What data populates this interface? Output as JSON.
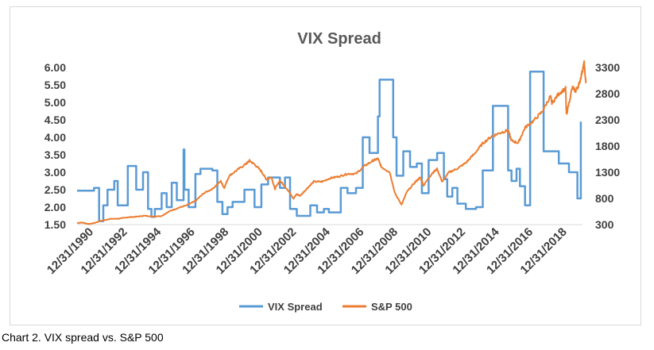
{
  "chart_data": {
    "type": "line",
    "title": "VIX Spread",
    "xlabel": "",
    "ylabel": "",
    "x_tick_labels": [
      "12/31/1990",
      "12/31/1992",
      "12/31/1994",
      "12/31/1996",
      "12/31/1998",
      "12/31/2000",
      "12/31/2002",
      "12/31/2004",
      "12/31/2006",
      "12/31/2008",
      "12/31/2010",
      "12/31/2012",
      "12/31/2014",
      "12/31/2016",
      "12/31/2018"
    ],
    "xlim": [
      1990.0,
      2019.9
    ],
    "y_left": {
      "ticks": [
        "1.50",
        "2.00",
        "2.50",
        "3.00",
        "3.50",
        "4.00",
        "4.50",
        "5.00",
        "5.50",
        "6.00"
      ],
      "ylim": [
        1.5,
        6.0
      ]
    },
    "y_right": {
      "ticks": [
        "300",
        "800",
        "1300",
        "1800",
        "2300",
        "2800",
        "3300"
      ],
      "ylim": [
        300,
        3300
      ]
    },
    "grid": false,
    "legend_position": "bottom",
    "series": [
      {
        "name": "VIX Spread",
        "axis": "left",
        "color": "#5b9bd5",
        "points": [
          [
            1990.0,
            2.47
          ],
          [
            1991.0,
            2.47
          ],
          [
            1991.0,
            2.55
          ],
          [
            1991.3,
            2.55
          ],
          [
            1991.3,
            1.6
          ],
          [
            1991.55,
            1.6
          ],
          [
            1991.55,
            2.05
          ],
          [
            1991.8,
            2.05
          ],
          [
            1991.8,
            2.5
          ],
          [
            1992.2,
            2.5
          ],
          [
            1992.2,
            2.75
          ],
          [
            1992.4,
            2.75
          ],
          [
            1992.4,
            2.05
          ],
          [
            1993.0,
            2.05
          ],
          [
            1993.0,
            3.18
          ],
          [
            1993.5,
            3.18
          ],
          [
            1993.5,
            2.5
          ],
          [
            1993.9,
            2.5
          ],
          [
            1993.9,
            3.0
          ],
          [
            1994.2,
            3.0
          ],
          [
            1994.2,
            1.95
          ],
          [
            1994.4,
            1.95
          ],
          [
            1994.4,
            1.72
          ],
          [
            1994.6,
            1.72
          ],
          [
            1994.6,
            1.95
          ],
          [
            1995.0,
            1.95
          ],
          [
            1995.0,
            2.4
          ],
          [
            1995.3,
            2.4
          ],
          [
            1995.3,
            2.0
          ],
          [
            1995.6,
            2.0
          ],
          [
            1995.6,
            2.7
          ],
          [
            1995.9,
            2.7
          ],
          [
            1995.9,
            2.2
          ],
          [
            1996.3,
            2.2
          ],
          [
            1996.3,
            3.65
          ],
          [
            1996.35,
            3.65
          ],
          [
            1996.35,
            2.5
          ],
          [
            1996.6,
            2.5
          ],
          [
            1996.6,
            2.0
          ],
          [
            1997.0,
            2.0
          ],
          [
            1997.0,
            2.95
          ],
          [
            1997.3,
            2.95
          ],
          [
            1997.3,
            3.1
          ],
          [
            1998.0,
            3.1
          ],
          [
            1998.0,
            3.05
          ],
          [
            1998.3,
            3.05
          ],
          [
            1998.3,
            2.15
          ],
          [
            1998.6,
            2.15
          ],
          [
            1998.6,
            1.8
          ],
          [
            1998.9,
            1.8
          ],
          [
            1998.9,
            2.0
          ],
          [
            1999.2,
            2.0
          ],
          [
            1999.2,
            2.15
          ],
          [
            1999.9,
            2.15
          ],
          [
            1999.9,
            2.5
          ],
          [
            2000.5,
            2.5
          ],
          [
            2000.5,
            2.0
          ],
          [
            2000.9,
            2.0
          ],
          [
            2000.9,
            2.65
          ],
          [
            2001.3,
            2.65
          ],
          [
            2001.3,
            2.85
          ],
          [
            2002.0,
            2.85
          ],
          [
            2002.0,
            2.55
          ],
          [
            2002.3,
            2.55
          ],
          [
            2002.3,
            2.85
          ],
          [
            2002.6,
            2.85
          ],
          [
            2002.6,
            1.95
          ],
          [
            2003.0,
            1.95
          ],
          [
            2003.0,
            1.75
          ],
          [
            2003.8,
            1.75
          ],
          [
            2003.8,
            2.05
          ],
          [
            2004.2,
            2.05
          ],
          [
            2004.2,
            1.85
          ],
          [
            2004.6,
            1.85
          ],
          [
            2004.6,
            1.95
          ],
          [
            2004.9,
            1.95
          ],
          [
            2004.9,
            1.85
          ],
          [
            2005.6,
            1.85
          ],
          [
            2005.6,
            2.55
          ],
          [
            2006.0,
            2.55
          ],
          [
            2006.0,
            2.4
          ],
          [
            2006.5,
            2.4
          ],
          [
            2006.5,
            2.55
          ],
          [
            2006.9,
            2.55
          ],
          [
            2006.9,
            4.0
          ],
          [
            2007.3,
            4.0
          ],
          [
            2007.3,
            3.55
          ],
          [
            2007.8,
            3.55
          ],
          [
            2007.8,
            4.6
          ],
          [
            2007.9,
            4.6
          ],
          [
            2007.9,
            5.65
          ],
          [
            2008.7,
            5.65
          ],
          [
            2008.7,
            4.0
          ],
          [
            2008.9,
            4.0
          ],
          [
            2008.9,
            2.9
          ],
          [
            2009.3,
            2.9
          ],
          [
            2009.3,
            3.6
          ],
          [
            2009.7,
            3.6
          ],
          [
            2009.7,
            3.15
          ],
          [
            2010.1,
            3.15
          ],
          [
            2010.1,
            3.25
          ],
          [
            2010.4,
            3.25
          ],
          [
            2010.4,
            2.4
          ],
          [
            2010.8,
            2.4
          ],
          [
            2010.8,
            3.35
          ],
          [
            2011.3,
            3.35
          ],
          [
            2011.3,
            3.55
          ],
          [
            2011.7,
            3.55
          ],
          [
            2011.7,
            2.8
          ],
          [
            2011.9,
            2.8
          ],
          [
            2011.9,
            2.3
          ],
          [
            2012.2,
            2.3
          ],
          [
            2012.2,
            2.55
          ],
          [
            2012.5,
            2.55
          ],
          [
            2012.5,
            2.1
          ],
          [
            2013.0,
            2.1
          ],
          [
            2013.0,
            1.95
          ],
          [
            2013.6,
            1.95
          ],
          [
            2013.6,
            2.0
          ],
          [
            2014.0,
            2.0
          ],
          [
            2014.0,
            3.05
          ],
          [
            2014.6,
            3.05
          ],
          [
            2014.6,
            4.9
          ],
          [
            2015.5,
            4.9
          ],
          [
            2015.5,
            3.05
          ],
          [
            2015.7,
            3.05
          ],
          [
            2015.7,
            2.75
          ],
          [
            2016.0,
            2.75
          ],
          [
            2016.0,
            3.1
          ],
          [
            2016.2,
            3.1
          ],
          [
            2016.2,
            2.6
          ],
          [
            2016.5,
            2.6
          ],
          [
            2016.5,
            2.05
          ],
          [
            2016.8,
            2.05
          ],
          [
            2016.8,
            5.88
          ],
          [
            2017.6,
            5.88
          ],
          [
            2017.6,
            3.6
          ],
          [
            2018.5,
            3.6
          ],
          [
            2018.5,
            3.25
          ],
          [
            2019.1,
            3.25
          ],
          [
            2019.1,
            3.0
          ],
          [
            2019.6,
            3.0
          ],
          [
            2019.6,
            2.25
          ],
          [
            2019.8,
            2.25
          ],
          [
            2019.8,
            4.45
          ]
        ]
      },
      {
        "name": "S&P 500",
        "axis": "right",
        "color": "#ed7d31",
        "points": [
          [
            1990.0,
            330
          ],
          [
            1990.3,
            340
          ],
          [
            1990.7,
            310
          ],
          [
            1991.0,
            330
          ],
          [
            1991.5,
            380
          ],
          [
            1992.0,
            410
          ],
          [
            1992.5,
            415
          ],
          [
            1993.0,
            440
          ],
          [
            1993.5,
            450
          ],
          [
            1994.0,
            470
          ],
          [
            1994.5,
            455
          ],
          [
            1995.0,
            465
          ],
          [
            1995.5,
            560
          ],
          [
            1996.0,
            620
          ],
          [
            1996.5,
            670
          ],
          [
            1997.0,
            750
          ],
          [
            1997.5,
            900
          ],
          [
            1998.0,
            980
          ],
          [
            1998.5,
            1130
          ],
          [
            1998.7,
            1000
          ],
          [
            1999.0,
            1230
          ],
          [
            1999.5,
            1350
          ],
          [
            2000.0,
            1460
          ],
          [
            2000.2,
            1520
          ],
          [
            2000.5,
            1450
          ],
          [
            2000.9,
            1320
          ],
          [
            2001.2,
            1160
          ],
          [
            2001.5,
            1210
          ],
          [
            2001.7,
            980
          ],
          [
            2002.0,
            1140
          ],
          [
            2002.5,
            950
          ],
          [
            2002.8,
            800
          ],
          [
            2003.0,
            880
          ],
          [
            2003.2,
            850
          ],
          [
            2003.6,
            990
          ],
          [
            2004.0,
            1120
          ],
          [
            2004.5,
            1120
          ],
          [
            2005.0,
            1190
          ],
          [
            2005.5,
            1220
          ],
          [
            2006.0,
            1270
          ],
          [
            2006.5,
            1270
          ],
          [
            2007.0,
            1420
          ],
          [
            2007.5,
            1520
          ],
          [
            2007.8,
            1560
          ],
          [
            2008.0,
            1400
          ],
          [
            2008.5,
            1300
          ],
          [
            2008.8,
            900
          ],
          [
            2009.2,
            680
          ],
          [
            2009.5,
            920
          ],
          [
            2010.0,
            1110
          ],
          [
            2010.3,
            1200
          ],
          [
            2010.5,
            1050
          ],
          [
            2011.0,
            1280
          ],
          [
            2011.3,
            1360
          ],
          [
            2011.6,
            1120
          ],
          [
            2012.0,
            1300
          ],
          [
            2012.5,
            1370
          ],
          [
            2013.0,
            1480
          ],
          [
            2013.5,
            1650
          ],
          [
            2014.0,
            1850
          ],
          [
            2014.5,
            1980
          ],
          [
            2015.0,
            2050
          ],
          [
            2015.5,
            2100
          ],
          [
            2015.7,
            1900
          ],
          [
            2016.1,
            1860
          ],
          [
            2016.5,
            2150
          ],
          [
            2017.0,
            2280
          ],
          [
            2017.5,
            2450
          ],
          [
            2018.0,
            2750
          ],
          [
            2018.1,
            2620
          ],
          [
            2018.5,
            2800
          ],
          [
            2018.9,
            2900
          ],
          [
            2018.95,
            2400
          ],
          [
            2019.3,
            2920
          ],
          [
            2019.5,
            2850
          ],
          [
            2019.7,
            2980
          ],
          [
            2019.9,
            3240
          ],
          [
            2020.0,
            3380
          ],
          [
            2020.1,
            3000
          ]
        ]
      }
    ]
  },
  "caption": "Chart 2. VIX spread vs. S&P 500"
}
